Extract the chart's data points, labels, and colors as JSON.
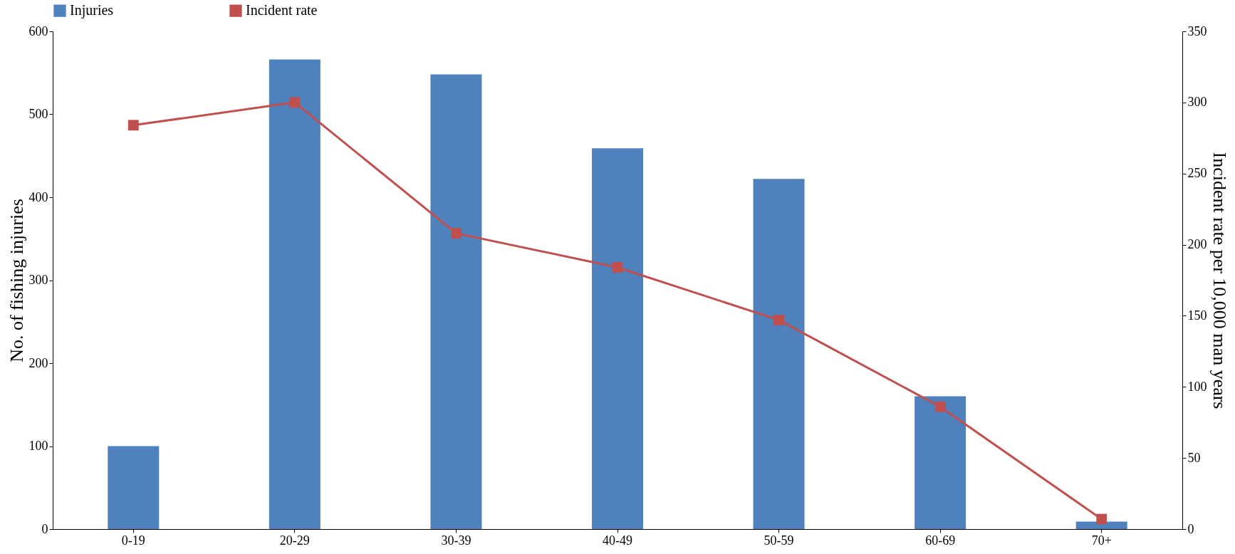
{
  "chart_data": {
    "type": "bar",
    "categories": [
      "0-19",
      "20-29",
      "30-39",
      "40-49",
      "50-59",
      "60-69",
      "70+"
    ],
    "ylabel": "No. of fishing injuries",
    "y2label": "Incident rate per 10,000 man years",
    "ylim": [
      0,
      600
    ],
    "yticks": [
      0,
      100,
      200,
      300,
      400,
      500,
      600
    ],
    "y2lim": [
      0,
      350
    ],
    "y2ticks": [
      0,
      50,
      100,
      150,
      200,
      250,
      300,
      350
    ],
    "grid": false,
    "legend": "top",
    "marker": "square",
    "line_style": "solid",
    "series": [
      {
        "name": "Injuries",
        "color": "#4f81bd",
        "values": [
          100,
          566,
          548,
          459,
          422,
          160,
          9
        ]
      },
      {
        "name": "Incident rate",
        "type": "line",
        "axis": "y2",
        "color": "#c0504d",
        "values": [
          284,
          300,
          208,
          184,
          147,
          86,
          7
        ]
      }
    ]
  }
}
